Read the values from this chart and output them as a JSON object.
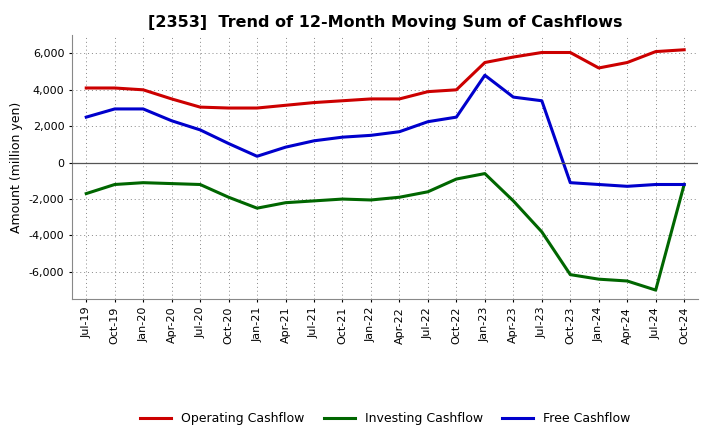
{
  "title": "[2353]  Trend of 12-Month Moving Sum of Cashflows",
  "ylabel": "Amount (million yen)",
  "background_color": "#ffffff",
  "grid_color": "#aaaaaa",
  "x_labels": [
    "Jul-19",
    "Oct-19",
    "Jan-20",
    "Apr-20",
    "Jul-20",
    "Oct-20",
    "Jan-21",
    "Apr-21",
    "Jul-21",
    "Oct-21",
    "Jan-22",
    "Apr-22",
    "Jul-22",
    "Oct-22",
    "Jan-23",
    "Apr-23",
    "Jul-23",
    "Oct-23",
    "Jan-24",
    "Apr-24",
    "Jul-24",
    "Oct-24"
  ],
  "operating": [
    4100,
    4100,
    4000,
    3500,
    3050,
    3000,
    3000,
    3150,
    3300,
    3400,
    3500,
    3500,
    3900,
    4000,
    5500,
    5800,
    6050,
    6050,
    5200,
    5500,
    6100,
    6200
  ],
  "investing": [
    -1700,
    -1200,
    -1100,
    -1150,
    -1200,
    -1900,
    -2500,
    -2200,
    -2100,
    -2000,
    -2050,
    -1900,
    -1600,
    -900,
    -600,
    -2100,
    -3800,
    -6150,
    -6400,
    -6500,
    -7000,
    -1200
  ],
  "free": [
    2500,
    2950,
    2950,
    2300,
    1800,
    1050,
    350,
    850,
    1200,
    1400,
    1500,
    1700,
    2250,
    2500,
    4800,
    3600,
    3400,
    -1100,
    -1200,
    -1300,
    -1200,
    -1200
  ],
  "operating_color": "#cc0000",
  "investing_color": "#006600",
  "free_color": "#0000cc",
  "ylim": [
    -7500,
    7000
  ],
  "yticks": [
    -6000,
    -4000,
    -2000,
    0,
    2000,
    4000,
    6000
  ],
  "legend_entries": [
    "Operating Cashflow",
    "Investing Cashflow",
    "Free Cashflow"
  ]
}
